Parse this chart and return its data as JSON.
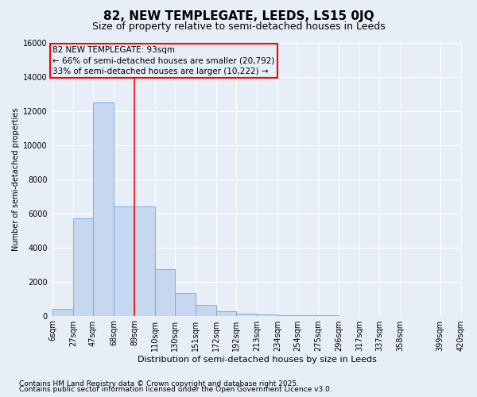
{
  "title": "82, NEW TEMPLEGATE, LEEDS, LS15 0JQ",
  "subtitle": "Size of property relative to semi-detached houses in Leeds",
  "xlabel": "Distribution of semi-detached houses by size in Leeds",
  "ylabel": "Number of semi-detached properties",
  "footnote1": "Contains HM Land Registry data © Crown copyright and database right 2025.",
  "footnote2": "Contains public sector information licensed under the Open Government Licence v3.0.",
  "annotation_title": "82 NEW TEMPLEGATE: 93sqm",
  "annotation_line1": "← 66% of semi-detached houses are smaller (20,792)",
  "annotation_line2": "33% of semi-detached houses are larger (10,222) →",
  "bin_edges": [
    6,
    27,
    47,
    68,
    89,
    110,
    130,
    151,
    172,
    192,
    213,
    234,
    254,
    275,
    296,
    317,
    337,
    358,
    399,
    420
  ],
  "bar_heights": [
    400,
    5700,
    12500,
    6400,
    6400,
    2750,
    1350,
    650,
    280,
    140,
    80,
    30,
    10,
    5,
    3,
    1,
    0,
    0,
    0
  ],
  "bar_color": "#c5d8f0",
  "bar_edgecolor": "#6fa8d4",
  "vline_color": "red",
  "vline_x": 89,
  "ylim": [
    0,
    16000
  ],
  "yticks": [
    0,
    2000,
    4000,
    6000,
    8000,
    10000,
    12000,
    14000,
    16000
  ],
  "background_color": "#e8eef8",
  "grid_color": "#ffffff",
  "title_fontsize": 11,
  "subtitle_fontsize": 9,
  "annotation_fontsize": 7.5,
  "ylabel_fontsize": 7,
  "xlabel_fontsize": 8,
  "footnote_fontsize": 6.5,
  "tick_fontsize": 7
}
